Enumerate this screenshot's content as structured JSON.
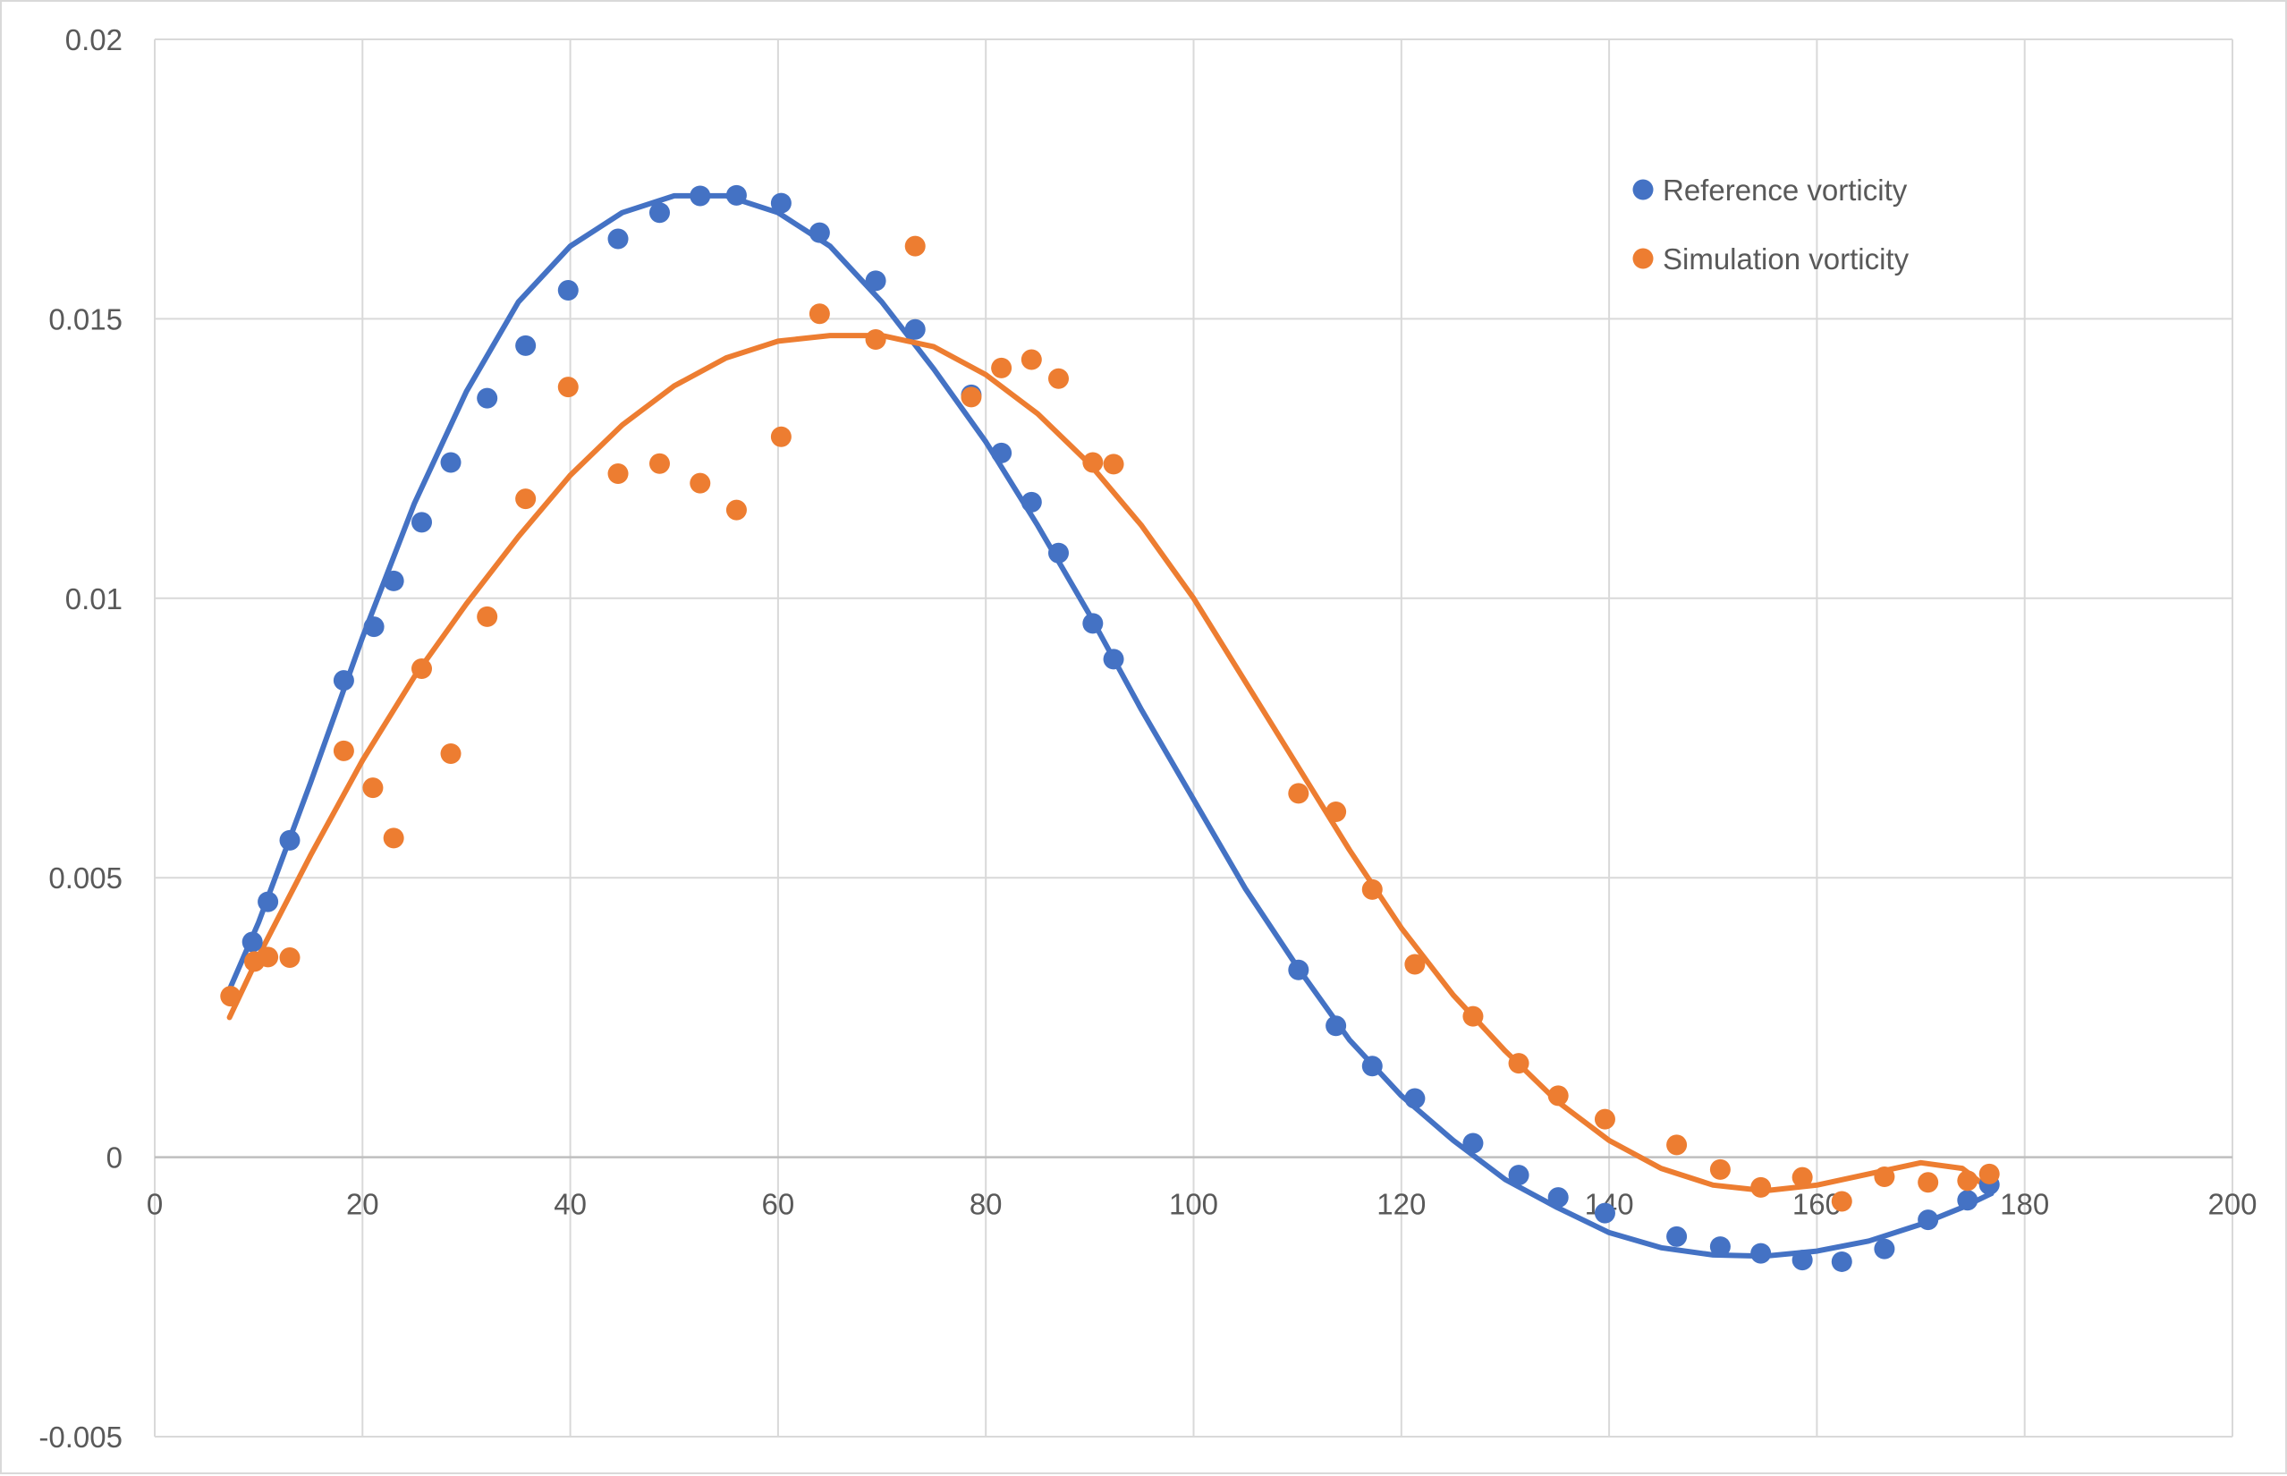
{
  "chart_data": {
    "type": "scatter",
    "title": "",
    "xlabel": "",
    "ylabel": "",
    "xlim": [
      0,
      200
    ],
    "ylim": [
      -0.005,
      0.02
    ],
    "x_ticks": [
      0,
      20,
      40,
      60,
      80,
      100,
      120,
      140,
      160,
      180,
      200
    ],
    "x_tick_labels": [
      "0",
      "20",
      "40",
      "60",
      "80",
      "100",
      "120",
      "140",
      "160",
      "180",
      "200"
    ],
    "y_ticks": [
      -0.005,
      0,
      0.005,
      0.01,
      0.015,
      0.02
    ],
    "y_tick_labels": [
      "-0.005",
      "0",
      "0.005",
      "0.01",
      "0.015",
      "0.02"
    ],
    "grid": true,
    "legend_position": "top-right",
    "series": [
      {
        "name": "Reference vorticity",
        "color": "#4472c4",
        "points": [
          [
            9.4,
            0.00385
          ],
          [
            10.9,
            0.00457
          ],
          [
            13.0,
            0.00567
          ],
          [
            18.2,
            0.00853
          ],
          [
            21.1,
            0.00949
          ],
          [
            23.0,
            0.01031
          ],
          [
            25.7,
            0.01136
          ],
          [
            28.5,
            0.01243
          ],
          [
            32.0,
            0.01358
          ],
          [
            35.7,
            0.01452
          ],
          [
            39.8,
            0.01551
          ],
          [
            44.6,
            0.01643
          ],
          [
            48.6,
            0.0169
          ],
          [
            52.5,
            0.0172
          ],
          [
            56.0,
            0.01721
          ],
          [
            60.3,
            0.01707
          ],
          [
            64.0,
            0.01654
          ],
          [
            69.4,
            0.01568
          ],
          [
            73.2,
            0.01481
          ],
          [
            78.6,
            0.01364
          ],
          [
            81.5,
            0.0126
          ],
          [
            84.4,
            0.01172
          ],
          [
            87.0,
            0.01081
          ],
          [
            90.3,
            0.00955
          ],
          [
            92.3,
            0.00891
          ],
          [
            110.1,
            0.00335
          ],
          [
            113.7,
            0.00235
          ],
          [
            117.2,
            0.00163
          ],
          [
            121.3,
            0.00105
          ],
          [
            126.9,
            0.00025
          ],
          [
            131.3,
            -0.00032
          ],
          [
            135.1,
            -0.00072
          ],
          [
            139.6,
            -0.001
          ],
          [
            146.5,
            -0.00142
          ],
          [
            150.7,
            -0.0016
          ],
          [
            154.6,
            -0.00172
          ],
          [
            158.6,
            -0.00184
          ],
          [
            162.4,
            -0.00187
          ],
          [
            166.5,
            -0.00164
          ],
          [
            170.7,
            -0.00112
          ],
          [
            174.5,
            -0.00077
          ],
          [
            176.6,
            -0.00049
          ]
        ],
        "trendline": {
          "x_range": [
            7.2,
            176.8
          ],
          "points": [
            [
              7.2,
              0.003
            ],
            [
              10.0,
              0.0042
            ],
            [
              15.0,
              0.0067
            ],
            [
              20.0,
              0.0093
            ],
            [
              25.0,
              0.0117
            ],
            [
              30.0,
              0.0137
            ],
            [
              35.0,
              0.0153
            ],
            [
              40.0,
              0.0163
            ],
            [
              45.0,
              0.0169
            ],
            [
              50.0,
              0.0172
            ],
            [
              55.0,
              0.0172
            ],
            [
              60.0,
              0.0169
            ],
            [
              65.0,
              0.0163
            ],
            [
              70.0,
              0.0153
            ],
            [
              75.0,
              0.0141
            ],
            [
              80.0,
              0.0128
            ],
            [
              85.0,
              0.0113
            ],
            [
              90.0,
              0.0097
            ],
            [
              95.0,
              0.008
            ],
            [
              100.0,
              0.0064
            ],
            [
              105.0,
              0.0048
            ],
            [
              110.0,
              0.0034
            ],
            [
              115.0,
              0.0021
            ],
            [
              120.0,
              0.0011
            ],
            [
              125.0,
              0.0003
            ],
            [
              130.0,
              -0.0004
            ],
            [
              135.0,
              -0.0009
            ],
            [
              140.0,
              -0.00135
            ],
            [
              145.0,
              -0.00162
            ],
            [
              150.0,
              -0.00175
            ],
            [
              155.0,
              -0.00177
            ],
            [
              160.0,
              -0.00168
            ],
            [
              165.0,
              -0.0015
            ],
            [
              170.0,
              -0.0012
            ],
            [
              174.0,
              -0.0009
            ],
            [
              176.8,
              -0.00065
            ]
          ]
        }
      },
      {
        "name": "Simulation vorticity",
        "color": "#ed7d31",
        "points": [
          [
            7.3,
            0.00288
          ],
          [
            9.6,
            0.0035
          ],
          [
            10.9,
            0.00358
          ],
          [
            13.0,
            0.00357
          ],
          [
            18.2,
            0.00727
          ],
          [
            21.0,
            0.00661
          ],
          [
            23.0,
            0.00571
          ],
          [
            25.7,
            0.00874
          ],
          [
            28.5,
            0.00722
          ],
          [
            32.0,
            0.00967
          ],
          [
            35.7,
            0.01178
          ],
          [
            39.8,
            0.01378
          ],
          [
            44.6,
            0.01223
          ],
          [
            48.6,
            0.01241
          ],
          [
            52.5,
            0.01206
          ],
          [
            56.0,
            0.01158
          ],
          [
            60.3,
            0.01289
          ],
          [
            64.0,
            0.01509
          ],
          [
            69.4,
            0.01463
          ],
          [
            73.2,
            0.0163
          ],
          [
            78.6,
            0.0136
          ],
          [
            81.5,
            0.01412
          ],
          [
            84.4,
            0.01427
          ],
          [
            87.0,
            0.01393
          ],
          [
            90.3,
            0.01243
          ],
          [
            92.3,
            0.0124
          ],
          [
            110.1,
            0.00651
          ],
          [
            113.7,
            0.00618
          ],
          [
            117.2,
            0.00479
          ],
          [
            121.3,
            0.00345
          ],
          [
            126.9,
            0.00252
          ],
          [
            131.3,
            0.00168
          ],
          [
            135.1,
            0.0011
          ],
          [
            139.6,
            0.00068
          ],
          [
            146.5,
            0.00022
          ],
          [
            150.7,
            -0.00022
          ],
          [
            154.6,
            -0.00054
          ],
          [
            158.6,
            -0.00036
          ],
          [
            162.4,
            -0.00079
          ],
          [
            166.5,
            -0.00035
          ],
          [
            170.7,
            -0.00045
          ],
          [
            174.5,
            -0.00042
          ],
          [
            176.6,
            -0.0003
          ]
        ],
        "trendline": {
          "x_range": [
            7.2,
            176.8
          ],
          "points": [
            [
              7.2,
              0.0025
            ],
            [
              10.0,
              0.0036
            ],
            [
              15.0,
              0.0054
            ],
            [
              20.0,
              0.0071
            ],
            [
              25.0,
              0.0086
            ],
            [
              30.0,
              0.0099
            ],
            [
              35.0,
              0.0111
            ],
            [
              40.0,
              0.0122
            ],
            [
              45.0,
              0.0131
            ],
            [
              50.0,
              0.0138
            ],
            [
              55.0,
              0.0143
            ],
            [
              60.0,
              0.0146
            ],
            [
              65.0,
              0.0147
            ],
            [
              70.0,
              0.0147
            ],
            [
              75.0,
              0.0145
            ],
            [
              80.0,
              0.014
            ],
            [
              85.0,
              0.0133
            ],
            [
              90.0,
              0.0124
            ],
            [
              95.0,
              0.0113
            ],
            [
              100.0,
              0.01
            ],
            [
              105.0,
              0.0085
            ],
            [
              110.0,
              0.007
            ],
            [
              115.0,
              0.0055
            ],
            [
              120.0,
              0.0041
            ],
            [
              125.0,
              0.0029
            ],
            [
              130.0,
              0.0019
            ],
            [
              135.0,
              0.001
            ],
            [
              140.0,
              0.0003
            ],
            [
              145.0,
              -0.0002
            ],
            [
              150.0,
              -0.0005
            ],
            [
              155.0,
              -0.0006
            ],
            [
              160.0,
              -0.0005
            ],
            [
              165.0,
              -0.0003
            ],
            [
              170.0,
              -0.0001
            ],
            [
              174.0,
              -0.0002
            ],
            [
              176.8,
              -0.0006
            ]
          ]
        }
      }
    ]
  }
}
